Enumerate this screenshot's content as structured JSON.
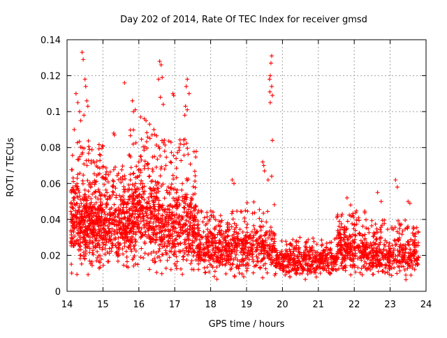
{
  "chart_data": {
    "type": "scatter",
    "title": "Day 202 of 2014, Rate Of TEC Index for receiver gmsd",
    "xlabel": "GPS time / hours",
    "ylabel": "ROTI / TECUs",
    "xlim": [
      14,
      24
    ],
    "ylim": [
      0,
      0.14
    ],
    "xticks": [
      14,
      15,
      16,
      17,
      18,
      19,
      20,
      21,
      22,
      23,
      24
    ],
    "xtick_labels": [
      "14",
      "15",
      "16",
      "17",
      "18",
      "19",
      "20",
      "21",
      "22",
      "23",
      "24"
    ],
    "yticks": [
      0,
      0.02,
      0.04,
      0.06,
      0.08,
      0.1,
      0.12,
      0.14
    ],
    "ytick_labels": [
      "0",
      "0.02",
      "0.04",
      "0.06",
      "0.08",
      "0.1",
      "0.12",
      "0.14"
    ],
    "grid": true,
    "marker": "+",
    "marker_color": "#ff0000",
    "series": [
      {
        "name": "ROTI",
        "density_model": {
          "x_range": [
            14.1,
            23.8
          ],
          "hour_bins": [
            {
              "hours": [
                14.1,
                15.0
              ],
              "points": 500,
              "median": 0.032,
              "upper": 0.085
            },
            {
              "hours": [
                15.0,
                15.7
              ],
              "points": 300,
              "median": 0.03,
              "upper": 0.07
            },
            {
              "hours": [
                15.7,
                16.6
              ],
              "points": 420,
              "median": 0.035,
              "upper": 0.09
            },
            {
              "hours": [
                16.6,
                17.6
              ],
              "points": 420,
              "median": 0.03,
              "upper": 0.085
            },
            {
              "hours": [
                17.6,
                19.0
              ],
              "points": 420,
              "median": 0.018,
              "upper": 0.045
            },
            {
              "hours": [
                19.0,
                19.8
              ],
              "points": 200,
              "median": 0.018,
              "upper": 0.05
            },
            {
              "hours": [
                19.8,
                21.5
              ],
              "points": 420,
              "median": 0.012,
              "upper": 0.03
            },
            {
              "hours": [
                21.5,
                22.3
              ],
              "points": 240,
              "median": 0.018,
              "upper": 0.045
            },
            {
              "hours": [
                22.3,
                23.8
              ],
              "points": 400,
              "median": 0.014,
              "upper": 0.04
            }
          ]
        },
        "peaks": [
          [
            14.42,
            0.133
          ],
          [
            14.45,
            0.129
          ],
          [
            14.5,
            0.118
          ],
          [
            14.52,
            0.114
          ],
          [
            14.55,
            0.106
          ],
          [
            14.58,
            0.103
          ],
          [
            14.25,
            0.11
          ],
          [
            14.3,
            0.105
          ],
          [
            14.35,
            0.1
          ],
          [
            14.47,
            0.098
          ],
          [
            14.2,
            0.09
          ],
          [
            14.38,
            0.095
          ],
          [
            15.3,
            0.088
          ],
          [
            15.32,
            0.087
          ],
          [
            15.6,
            0.116
          ],
          [
            15.82,
            0.106
          ],
          [
            15.9,
            0.101
          ],
          [
            15.85,
            0.1
          ],
          [
            16.05,
            0.097
          ],
          [
            16.15,
            0.096
          ],
          [
            16.2,
            0.095
          ],
          [
            16.3,
            0.093
          ],
          [
            16.42,
            0.09
          ],
          [
            16.58,
            0.128
          ],
          [
            16.62,
            0.126
          ],
          [
            16.55,
            0.118
          ],
          [
            16.65,
            0.119
          ],
          [
            16.6,
            0.108
          ],
          [
            16.68,
            0.104
          ],
          [
            16.95,
            0.11
          ],
          [
            16.97,
            0.109
          ],
          [
            17.35,
            0.118
          ],
          [
            17.32,
            0.114
          ],
          [
            17.4,
            0.11
          ],
          [
            17.3,
            0.103
          ],
          [
            17.35,
            0.101
          ],
          [
            17.28,
            0.098
          ],
          [
            18.6,
            0.062
          ],
          [
            18.65,
            0.06
          ],
          [
            19.7,
            0.131
          ],
          [
            19.68,
            0.127
          ],
          [
            19.66,
            0.12
          ],
          [
            19.64,
            0.118
          ],
          [
            19.7,
            0.114
          ],
          [
            19.65,
            0.111
          ],
          [
            19.72,
            0.109
          ],
          [
            19.66,
            0.105
          ],
          [
            19.72,
            0.084
          ],
          [
            19.45,
            0.072
          ],
          [
            19.48,
            0.07
          ],
          [
            19.5,
            0.067
          ],
          [
            19.6,
            0.062
          ],
          [
            19.7,
            0.064
          ],
          [
            21.8,
            0.052
          ],
          [
            21.9,
            0.048
          ],
          [
            22.65,
            0.055
          ],
          [
            22.75,
            0.05
          ],
          [
            23.15,
            0.062
          ],
          [
            23.2,
            0.058
          ],
          [
            23.5,
            0.05
          ],
          [
            23.55,
            0.049
          ]
        ]
      }
    ]
  }
}
